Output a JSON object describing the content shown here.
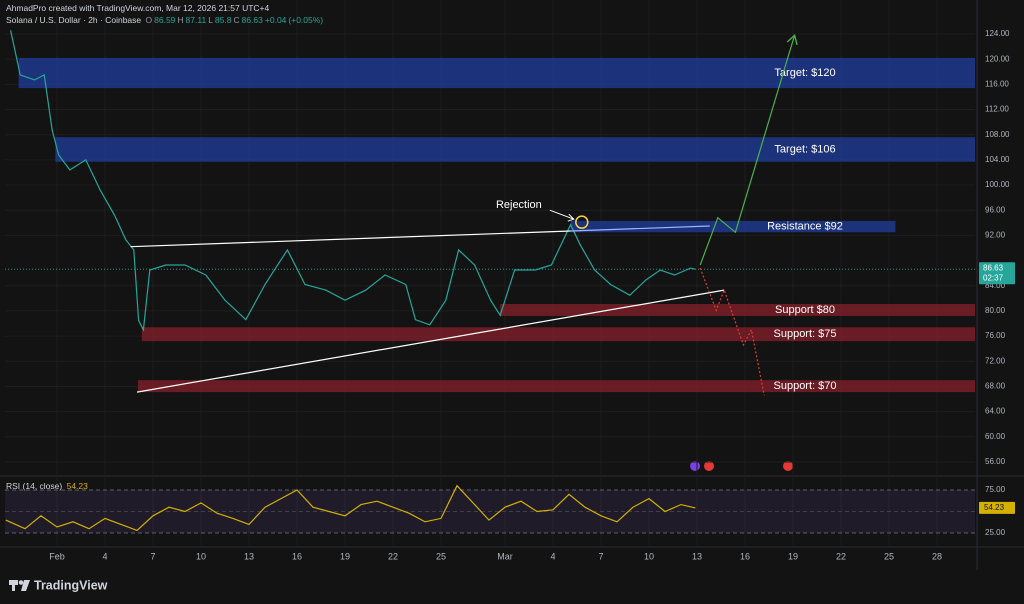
{
  "credit": "AhmadPro created with TradingView.com, Mar 12, 2026 21:57 UTC+4",
  "brand": "TradingView",
  "countdown": "02:37",
  "chart_data": [
    {
      "type": "line",
      "title": "Solana / U.S. Dollar · 2h · Coinbase",
      "ohlc": [
        {
          "label": "O",
          "value": 86.59
        },
        {
          "label": "H",
          "value": 87.11
        },
        {
          "label": "L",
          "value": 85.8
        },
        {
          "label": "C",
          "value": 86.63
        }
      ],
      "change": "+0.04",
      "change_pct": "(+0.05%)",
      "color": "#26a69a",
      "x": [
        -2.9,
        -2.3,
        -1.4,
        -0.8,
        -0.3,
        0.1,
        0.8,
        1.8,
        2.7,
        3.6,
        4.3,
        4.8,
        5.1,
        5.4,
        5.8,
        6.8,
        8,
        9.3,
        10.5,
        11.8,
        13,
        14.4,
        15.5,
        16.8,
        18,
        19.3,
        20.5,
        21.8,
        22.4,
        23.3,
        24.3,
        25.1,
        26.1,
        27.1,
        27.7,
        28.6,
        29.9,
        30.9,
        31.5,
        32.1,
        32.7,
        33.6,
        34.6,
        35.8,
        36.8,
        37.7,
        38.6,
        39.6,
        39.9
      ],
      "values": [
        124.6,
        117.5,
        116.7,
        117.5,
        108.7,
        104.8,
        102.4,
        104,
        99.2,
        95.2,
        91.3,
        89.7,
        78.5,
        77,
        86.5,
        87.3,
        87.3,
        85.7,
        81.7,
        78.6,
        84.2,
        89.7,
        84.2,
        83.3,
        81.7,
        83.3,
        85.7,
        84.2,
        78.6,
        77.8,
        81.7,
        89.7,
        87.3,
        81.7,
        79.3,
        86.5,
        86.5,
        87.3,
        90.5,
        93.7,
        90.5,
        86.5,
        84.2,
        82.5,
        84.9,
        86.5,
        85.7,
        86.8,
        86.63
      ],
      "xlim": [
        -3.25,
        57.375
      ],
      "xticks": [
        {
          "value": 0,
          "label": "Feb"
        },
        {
          "value": 3,
          "label": "4"
        },
        {
          "value": 6,
          "label": "7"
        },
        {
          "value": 9,
          "label": "10"
        },
        {
          "value": 12,
          "label": "13"
        },
        {
          "value": 15,
          "label": "16"
        },
        {
          "value": 18,
          "label": "19"
        },
        {
          "value": 21,
          "label": "22"
        },
        {
          "value": 24,
          "label": "25"
        },
        {
          "value": 28,
          "label": "Mar"
        },
        {
          "value": 31,
          "label": "4"
        },
        {
          "value": 34,
          "label": "7"
        },
        {
          "value": 37,
          "label": "10"
        },
        {
          "value": 40,
          "label": "13"
        },
        {
          "value": 43,
          "label": "16"
        },
        {
          "value": 46,
          "label": "19"
        },
        {
          "value": 49,
          "label": "22"
        },
        {
          "value": 52,
          "label": "25"
        },
        {
          "value": 55,
          "label": "28"
        }
      ],
      "ylim": [
        53.93,
        129.4
      ],
      "yticks": [
        {
          "value": 56,
          "label": "56.00"
        },
        {
          "value": 60,
          "label": "60.00"
        },
        {
          "value": 64,
          "label": "64.00"
        },
        {
          "value": 68,
          "label": "68.00"
        },
        {
          "value": 72,
          "label": "72.00"
        },
        {
          "value": 76,
          "label": "76.00"
        },
        {
          "value": 80,
          "label": "80.00"
        },
        {
          "value": 84,
          "label": "84.00"
        },
        {
          "value": 92,
          "label": "92.00"
        },
        {
          "value": 96,
          "label": "96.00"
        },
        {
          "value": 100,
          "label": "100.00"
        },
        {
          "value": 104,
          "label": "104.00"
        },
        {
          "value": 108,
          "label": "108.00"
        },
        {
          "value": 112,
          "label": "112.00"
        },
        {
          "value": 116,
          "label": "116.00"
        },
        {
          "value": 120,
          "label": "120.00"
        },
        {
          "value": 124,
          "label": "124.00"
        }
      ],
      "grid": true,
      "zones": [
        {
          "label": "Target: $120",
          "low": 115.4,
          "high": 120.2,
          "start": -2.4,
          "color": "#1f3a8f"
        },
        {
          "label": "Target: $106",
          "low": 103.7,
          "high": 107.6,
          "start": -0.1,
          "color": "#1f3a8f"
        },
        {
          "label": "Resistance $92",
          "low": 92.5,
          "high": 94.3,
          "start": 32.1,
          "end": 52.4,
          "color": "#1f3a8f"
        },
        {
          "label": "Support $80",
          "low": 79.2,
          "high": 81.1,
          "start": 27.7,
          "color": "#7a1f28"
        },
        {
          "label": "Support: $75",
          "low": 75.2,
          "high": 77.4,
          "start": 5.3,
          "color": "#7a1f28"
        },
        {
          "label": "Support: $70",
          "low": 67.1,
          "high": 69.0,
          "start": 5.06,
          "color": "#7a1f28"
        }
      ],
      "lines": [
        {
          "color": "#ffffff",
          "x": [
            4.6,
            32.1
          ],
          "y": [
            90.2,
            92.7
          ]
        },
        {
          "color": "#9fb4ff",
          "x": [
            32.1,
            40.8
          ],
          "y": [
            92.7,
            93.5
          ]
        },
        {
          "color": "#ffffff",
          "x": [
            5.0,
            41.7
          ],
          "y": [
            67.1,
            83.3
          ]
        },
        {
          "color": "#4caf50",
          "x": [
            40.2,
            41.3,
            42.4,
            46.1
          ],
          "y": [
            87.3,
            94.8,
            92.5,
            123.8
          ],
          "arrow": true
        },
        {
          "color": "#e53935",
          "x": [
            40.2,
            41.2,
            41.7,
            42.9,
            43.4,
            44.2
          ],
          "y": [
            86.8,
            80.1,
            83.3,
            74.6,
            77,
            66.6
          ],
          "dashed": true
        }
      ],
      "annotations": [
        {
          "text": "Rejection",
          "x": 32.8,
          "y": 94.1
        }
      ]
    },
    {
      "type": "line",
      "title": "RSI (14, close)",
      "last": 54.23,
      "color": "#d4b000",
      "x": [
        -3.2,
        -2,
        -1,
        0,
        1,
        2,
        3,
        4,
        5,
        6,
        7,
        8,
        9,
        10,
        11,
        12,
        13,
        14,
        15,
        16,
        17,
        18,
        19,
        20,
        21,
        22,
        23,
        24,
        25,
        26,
        27,
        28,
        29,
        30,
        31,
        32,
        33,
        34,
        35,
        36,
        37,
        38,
        39,
        39.9
      ],
      "values": [
        40,
        30,
        45,
        32,
        38,
        30,
        42,
        35,
        28,
        45,
        55,
        50,
        60,
        48,
        42,
        35,
        55,
        65,
        75,
        55,
        50,
        45,
        58,
        62,
        55,
        48,
        38,
        42,
        80,
        60,
        40,
        55,
        62,
        50,
        52,
        70,
        55,
        45,
        38,
        55,
        65,
        50,
        58,
        54.23
      ],
      "xlim": [
        -3.25,
        57.375
      ],
      "ylim": [
        11.05,
        88.95
      ],
      "yticks": [
        {
          "value": 25,
          "label": "25.00"
        },
        {
          "value": 75,
          "label": "75.00"
        }
      ]
    }
  ]
}
